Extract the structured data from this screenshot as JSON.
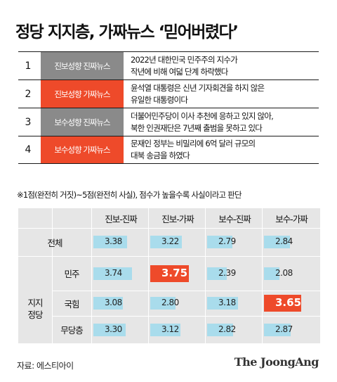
{
  "title": "정당 지지층, 가짜뉴스 ‘믿어버렸다’",
  "news": [
    {
      "num": "1",
      "tag": "진보성향 진짜뉴스",
      "tag_color": "#8a8a8a",
      "lines": [
        "2022년 대한민국 민주주의 지수가",
        "작년에 비해 여덟 단계 하락했다"
      ]
    },
    {
      "num": "2",
      "tag": "진보성향 가짜뉴스",
      "tag_color": "#ee4a2a",
      "lines": [
        "윤석열 대통령은 신년 기자회견을 하지 않은",
        "유일한 대통령이다"
      ]
    },
    {
      "num": "3",
      "tag": "보수성향 진짜뉴스",
      "tag_color": "#8a8a8a",
      "lines": [
        "더불어민주당이 이사 추천에 응하고 있지 않아,",
        "북한 인권재단은 7년째 출범을 못하고 있다"
      ]
    },
    {
      "num": "4",
      "tag": "보수성향 가짜뉴스",
      "tag_color": "#ee4a2a",
      "lines": [
        "문재인 정부는 비밀리에 6억 달러 규모의",
        "대북 송금을 하였다"
      ]
    }
  ],
  "note": "※1점(완전히 거짓)~5점(완전히 사실), 점수가 높을수록 사실이라고 판단",
  "chart_data": {
    "type": "table",
    "columns": [
      "진보-진짜",
      "진보-가짜",
      "보수-진짜",
      "보수-가짜"
    ],
    "rows": [
      {
        "label": "전체",
        "values": [
          3.38,
          3.22,
          2.79,
          2.84
        ]
      },
      {
        "group": "지지 정당",
        "label": "민주",
        "values": [
          3.74,
          3.75,
          2.39,
          2.08
        ]
      },
      {
        "group": "지지 정당",
        "label": "국힘",
        "values": [
          3.08,
          2.8,
          3.18,
          3.65
        ]
      },
      {
        "group": "지지 정당",
        "label": "무당층",
        "values": [
          3.3,
          3.12,
          2.82,
          2.87
        ]
      }
    ],
    "group_label": "지지\n정당",
    "scale": [
      1,
      5
    ],
    "bar_color": "#a9dcec",
    "highlight_color": "#ee4a2a",
    "highlights": [
      [
        1,
        1
      ],
      [
        2,
        3
      ]
    ]
  },
  "source": "자료: 에스티아이",
  "brand": "The JoongAng"
}
